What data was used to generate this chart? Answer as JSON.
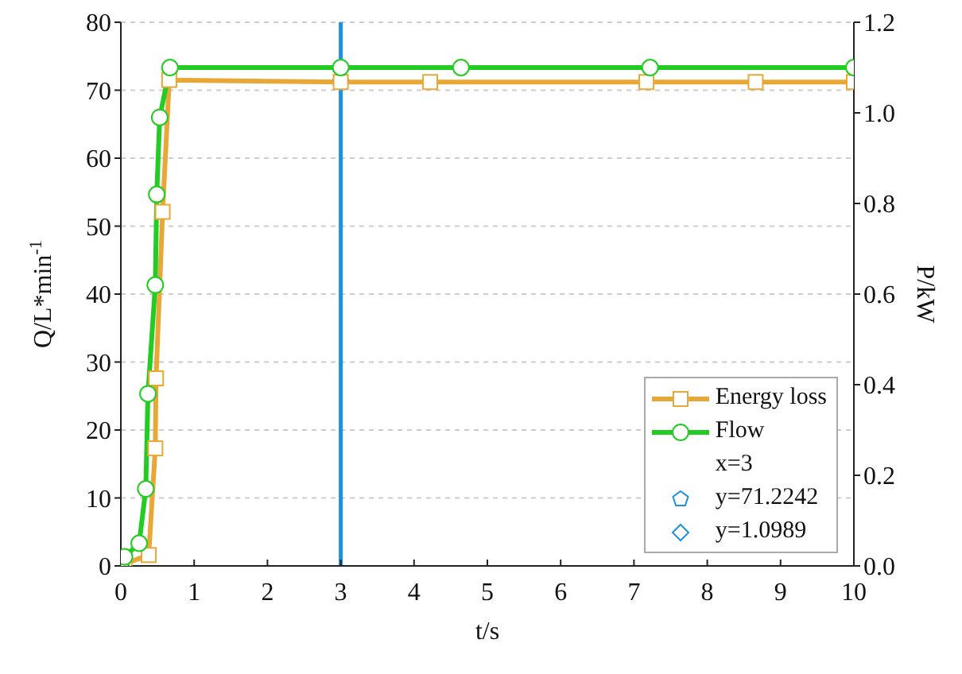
{
  "chart_data": {
    "type": "line",
    "xlabel": "t/s",
    "ylabel": "Q/L*min$^{-1}$",
    "y2label": "P/kW",
    "xlim": [
      0,
      10
    ],
    "xticks": [
      0,
      1,
      2,
      3,
      4,
      5,
      6,
      7,
      8,
      9,
      10
    ],
    "ylim": [
      0,
      80
    ],
    "yticks": [
      0,
      10,
      20,
      30,
      40,
      50,
      60,
      70,
      80
    ],
    "y2lim": [
      0,
      1.2
    ],
    "y2ticks": [
      {
        "value": 0,
        "label": "0.0"
      },
      {
        "value": 0.2,
        "label": "0.2"
      },
      {
        "value": 0.4,
        "label": "0.4"
      },
      {
        "value": 0.6,
        "label": "0.6"
      },
      {
        "value": 0.8,
        "label": "0.8"
      },
      {
        "value": 1,
        "label": "1.0"
      },
      {
        "value": 1.2,
        "label": "1.2"
      }
    ],
    "series": [
      {
        "name": "Energy loss",
        "color": "#e8a838",
        "marker": "square",
        "x": [
          0,
          0.05,
          0.38,
          0.47,
          0.48,
          0.57,
          0.66,
          3,
          4.22,
          7.17,
          8.66,
          10
        ],
        "values": [
          0,
          0.3,
          1.6,
          17.3,
          27.6,
          52.1,
          71.5,
          71.2,
          71.2,
          71.2,
          71.2,
          71.2
        ]
      },
      {
        "name": "Flow",
        "color": "#22cc22",
        "marker": "circle",
        "axis": "y2",
        "x": [
          0,
          0.05,
          0.25,
          0.34,
          0.37,
          0.47,
          0.49,
          0.53,
          0.67,
          3,
          4.64,
          7.22,
          10
        ],
        "values": [
          0,
          0.02,
          0.05,
          0.17,
          0.38,
          0.62,
          0.82,
          0.99,
          1.1,
          1.1,
          1.1,
          1.1,
          1.1
        ]
      }
    ],
    "ref_lines": [
      {
        "axis": "x",
        "value": 3,
        "color": "#1e90e0",
        "line_style": "solid"
      }
    ],
    "annotations": [
      "x=3",
      "y=71.2242",
      "y=1.0989"
    ],
    "grid": true,
    "legend": "bottom right",
    "line_style": "solid"
  }
}
